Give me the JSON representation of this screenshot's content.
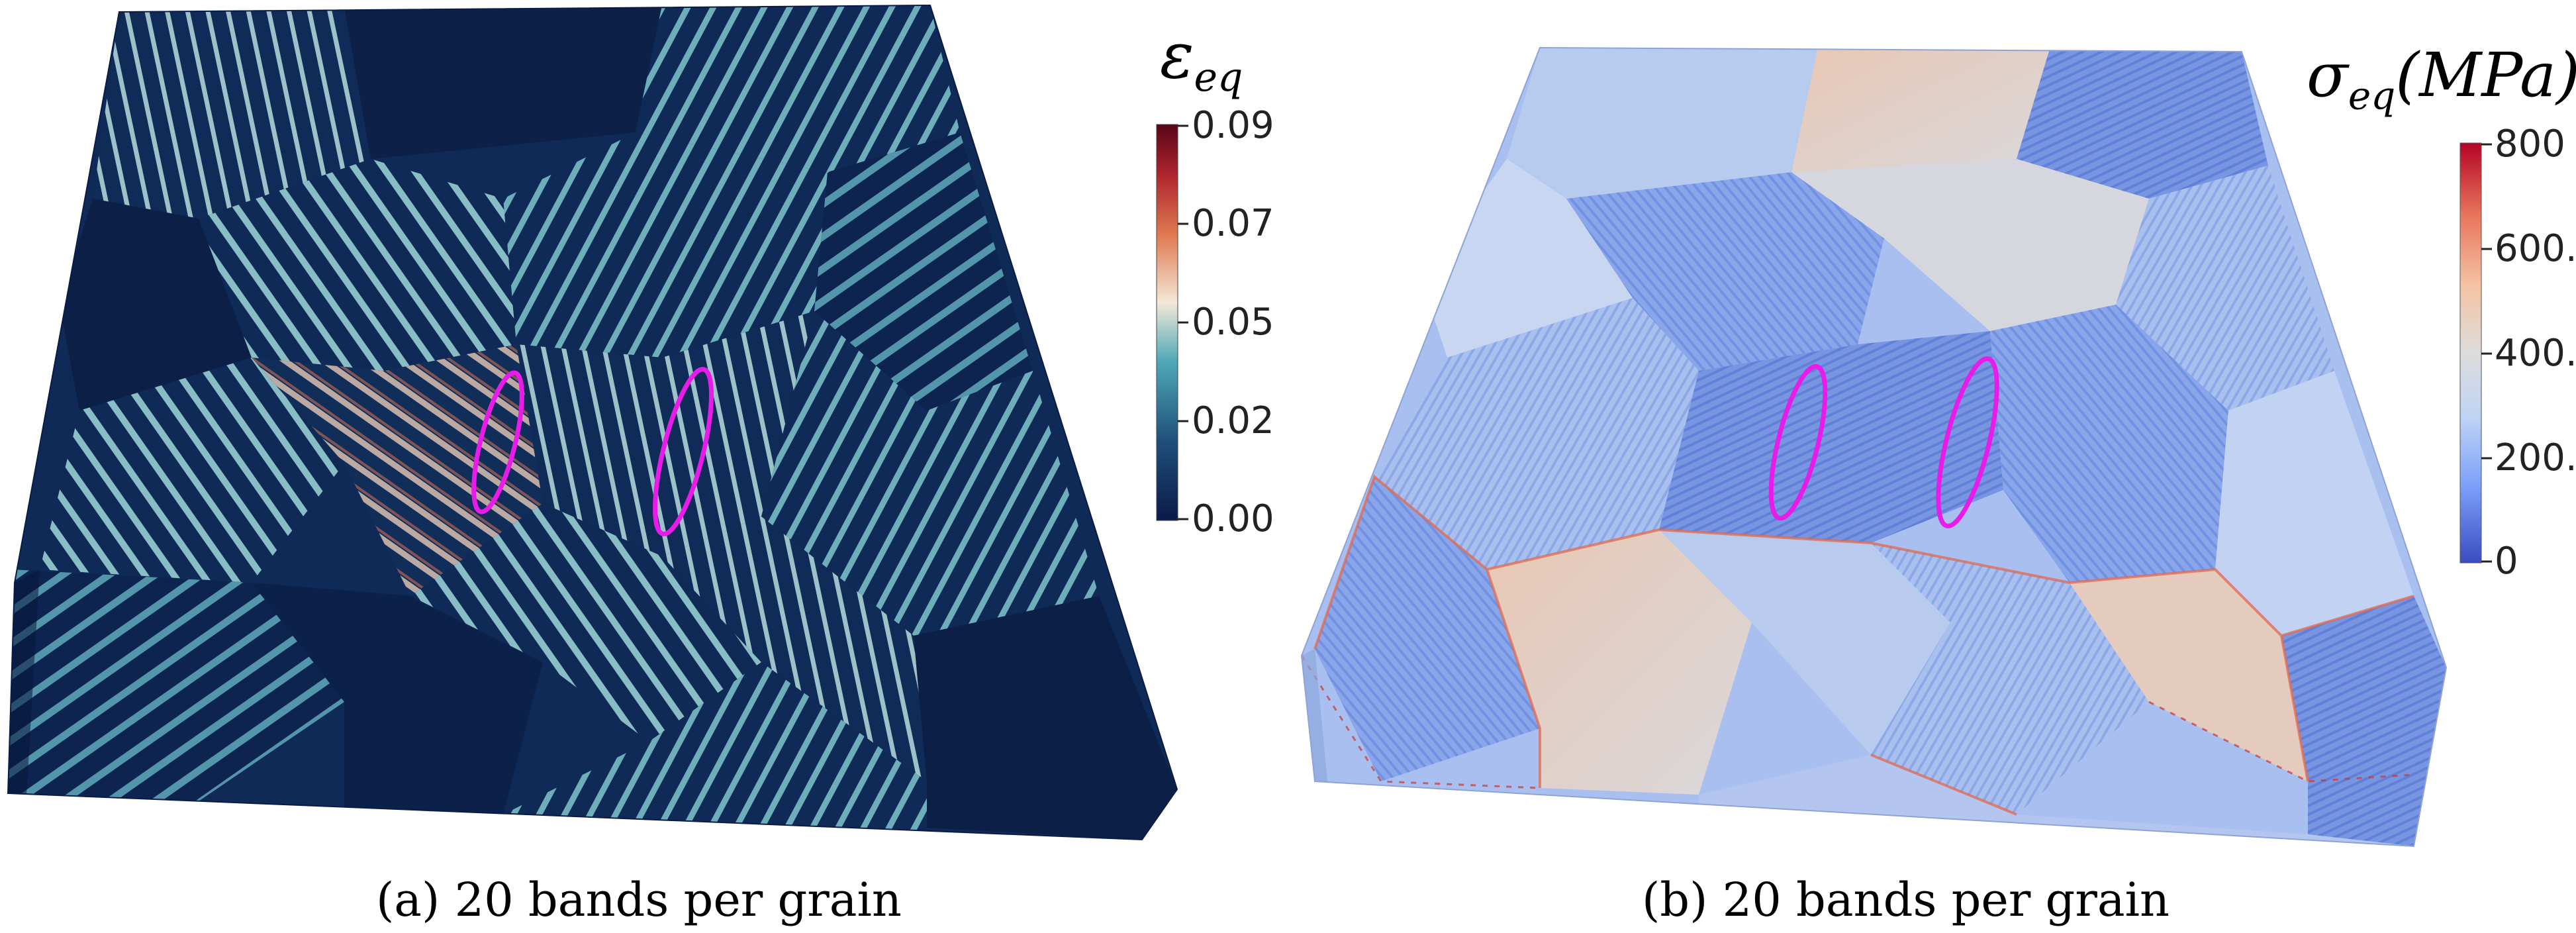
{
  "panel_a": {
    "caption": "(a) 20 bands per grain",
    "colorbar": {
      "title_symbol": "ε",
      "title_subscript": "eq",
      "ticks": [
        "0.09",
        "0.07",
        "0.05",
        "0.02",
        "0.00"
      ],
      "range": [
        0.0,
        0.09
      ],
      "colormap": [
        "#0b1a4a",
        "#1f4f7a",
        "#4ea8b8",
        "#f2e8d8",
        "#e07a52",
        "#b0262e",
        "#5a0418"
      ]
    }
  },
  "panel_b": {
    "caption": "(b) 20 bands per grain",
    "colorbar": {
      "title_symbol": "σ",
      "title_subscript": "eq",
      "title_unit": "(MPa)",
      "ticks": [
        "800",
        "600.",
        "400.",
        "200.",
        "0"
      ],
      "range": [
        0,
        800
      ],
      "colormap": [
        "#3b4cc0",
        "#7b9ff9",
        "#c0d4f5",
        "#dddcdc",
        "#f4c4a4",
        "#e7745b",
        "#b40426"
      ]
    }
  },
  "highlight_color": "#e81ce8"
}
